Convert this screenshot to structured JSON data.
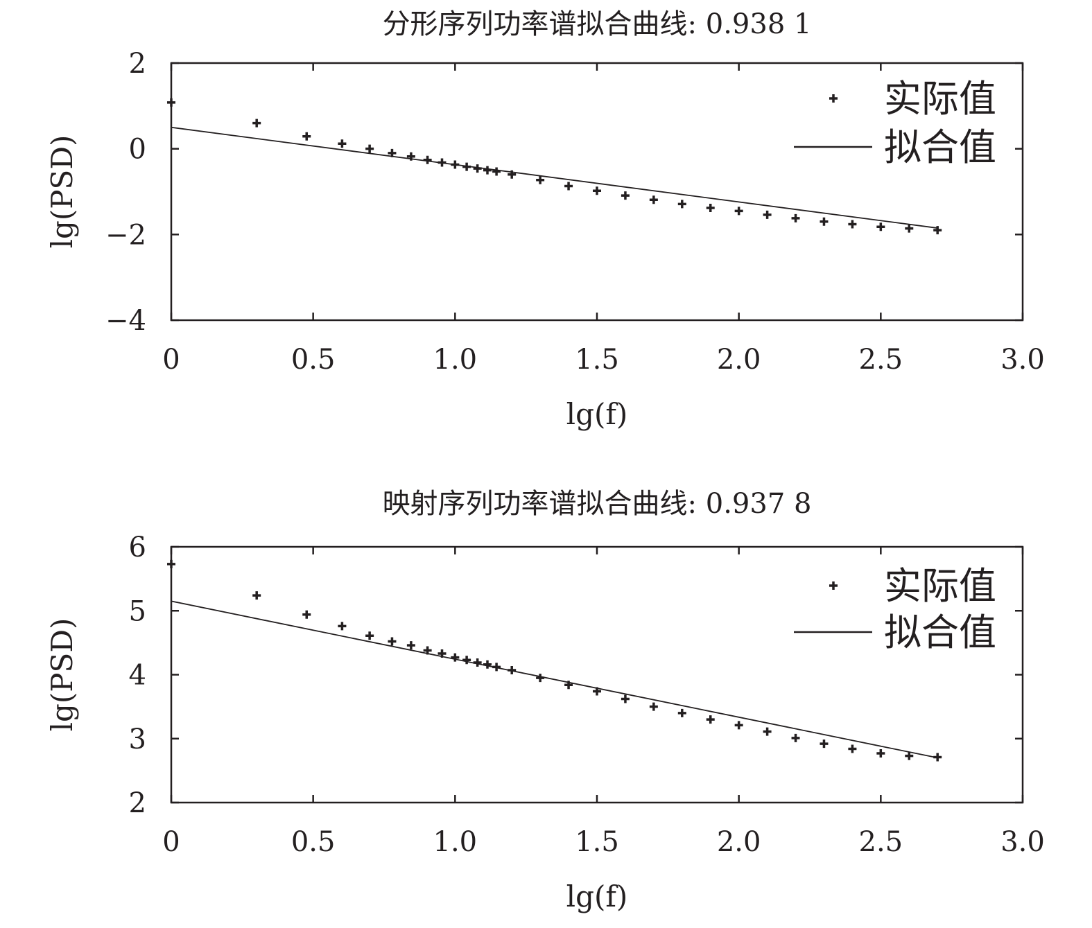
{
  "chart_data": [
    {
      "type": "scatter",
      "title": "分形序列功率谱拟合曲线: 0.938 1",
      "xlabel": "lg(f)",
      "ylabel": "lg(PSD)",
      "xlim": [
        0,
        3.0
      ],
      "ylim": [
        -4,
        2
      ],
      "xticks": [
        "0",
        "0.5",
        "1.0",
        "1.5",
        "2.0",
        "2.5",
        "3.0"
      ],
      "yticks": [
        "2",
        "0",
        "−2",
        "−4"
      ],
      "xtick_values": [
        0,
        0.5,
        1.0,
        1.5,
        2.0,
        2.5,
        3.0
      ],
      "ytick_values": [
        2,
        0,
        -2,
        -4
      ],
      "legend_position": "top-right",
      "grid": false,
      "series": [
        {
          "name": "实际值",
          "marker": "plus",
          "x": [
            0.0,
            0.301,
            0.477,
            0.602,
            0.699,
            0.778,
            0.845,
            0.903,
            0.954,
            1.0,
            1.041,
            1.079,
            1.114,
            1.146,
            1.2,
            1.3,
            1.4,
            1.5,
            1.6,
            1.7,
            1.8,
            1.9,
            2.0,
            2.1,
            2.2,
            2.3,
            2.4,
            2.5,
            2.6,
            2.7
          ],
          "y": [
            1.08,
            0.6,
            0.29,
            0.12,
            0.0,
            -0.1,
            -0.18,
            -0.26,
            -0.32,
            -0.37,
            -0.42,
            -0.46,
            -0.5,
            -0.53,
            -0.6,
            -0.73,
            -0.87,
            -0.98,
            -1.09,
            -1.19,
            -1.29,
            -1.38,
            -1.45,
            -1.54,
            -1.62,
            -1.7,
            -1.76,
            -1.82,
            -1.86,
            -1.9
          ]
        },
        {
          "name": "拟合值",
          "marker": "line",
          "x": [
            0,
            2.7
          ],
          "y": [
            0.5,
            -1.85
          ]
        }
      ]
    },
    {
      "type": "scatter",
      "title": "映射序列功率谱拟合曲线: 0.937 8",
      "xlabel": "lg(f)",
      "ylabel": "lg(PSD)",
      "xlim": [
        0,
        3.0
      ],
      "ylim": [
        2,
        6
      ],
      "xticks": [
        "0",
        "0.5",
        "1.0",
        "1.5",
        "2.0",
        "2.5",
        "3.0"
      ],
      "yticks": [
        "6",
        "5",
        "4",
        "3",
        "2"
      ],
      "xtick_values": [
        0,
        0.5,
        1.0,
        1.5,
        2.0,
        2.5,
        3.0
      ],
      "ytick_values": [
        6,
        5,
        4,
        3,
        2
      ],
      "legend_position": "top-right",
      "grid": false,
      "series": [
        {
          "name": "实际值",
          "marker": "plus",
          "x": [
            0.0,
            0.301,
            0.477,
            0.602,
            0.699,
            0.778,
            0.845,
            0.903,
            0.954,
            1.0,
            1.041,
            1.079,
            1.114,
            1.146,
            1.2,
            1.3,
            1.4,
            1.5,
            1.6,
            1.7,
            1.8,
            1.9,
            2.0,
            2.1,
            2.2,
            2.3,
            2.4,
            2.5,
            2.6,
            2.7
          ],
          "y": [
            5.73,
            5.24,
            4.94,
            4.76,
            4.61,
            4.52,
            4.46,
            4.38,
            4.33,
            4.27,
            4.23,
            4.19,
            4.16,
            4.12,
            4.07,
            3.95,
            3.84,
            3.74,
            3.62,
            3.5,
            3.4,
            3.3,
            3.21,
            3.11,
            3.01,
            2.92,
            2.84,
            2.77,
            2.73,
            2.71
          ]
        },
        {
          "name": "拟合值",
          "marker": "line",
          "x": [
            0,
            2.7
          ],
          "y": [
            5.15,
            2.7
          ]
        }
      ]
    }
  ]
}
